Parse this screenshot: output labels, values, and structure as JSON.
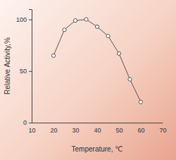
{
  "chart_data": {
    "type": "line",
    "x": [
      20,
      25,
      30,
      35,
      40,
      45,
      50,
      55,
      60
    ],
    "values": [
      65,
      90,
      99,
      100,
      93,
      84,
      67,
      42,
      20
    ],
    "x_label": "Temperature, ℃",
    "y_label": "Relative Activity,%",
    "xlim": [
      10,
      70
    ],
    "xticks": [
      10,
      20,
      30,
      40,
      50,
      60,
      70
    ],
    "ylim": [
      0,
      110
    ],
    "yticks": [
      0,
      50,
      100
    ],
    "color": "#555555",
    "marker": "circle",
    "grid": false
  }
}
